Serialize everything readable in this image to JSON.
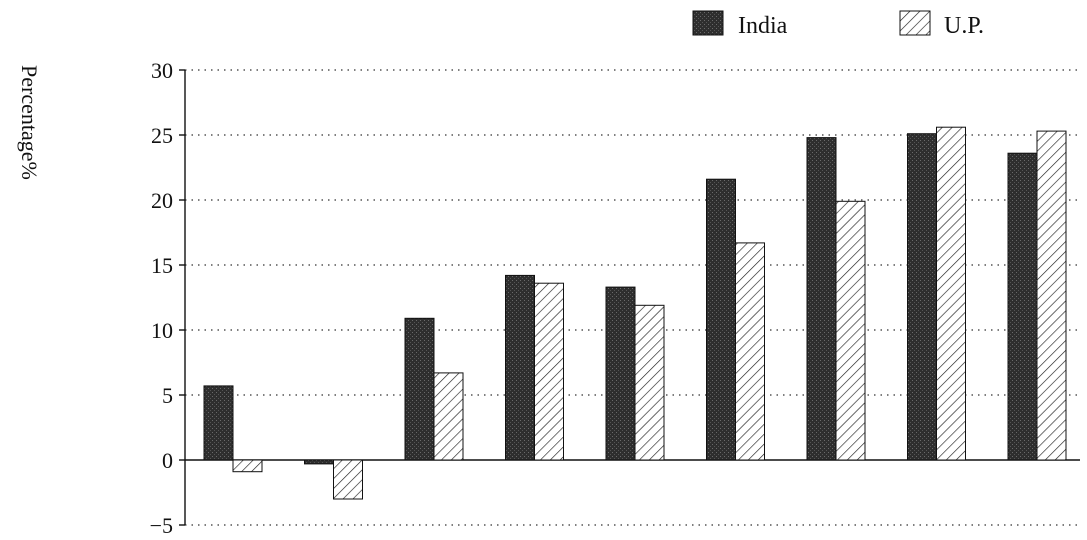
{
  "chart_data": {
    "type": "bar",
    "ylabel": "Percentage%",
    "xlabel": "",
    "ylim": [
      -5,
      30
    ],
    "yticks": [
      -5,
      0,
      5,
      10,
      15,
      20,
      25,
      30
    ],
    "grid": true,
    "legend_position": "top-right",
    "categories": [
      "",
      "",
      "",
      "",
      "",
      "",
      "",
      "",
      ""
    ],
    "series": [
      {
        "name": "India",
        "values": [
          5.7,
          -0.3,
          10.9,
          14.2,
          13.3,
          21.6,
          24.8,
          25.1,
          23.6
        ],
        "pattern": "dark-dotted"
      },
      {
        "name": "U.P.",
        "values": [
          -0.9,
          -3.0,
          6.7,
          13.6,
          11.9,
          16.7,
          19.9,
          25.6,
          25.3
        ],
        "pattern": "hatched"
      }
    ]
  },
  "colors": {
    "india_fill": "#3a3a3a",
    "up_fill": "#ffffff",
    "axis": "#111111",
    "grid": "#333333"
  }
}
